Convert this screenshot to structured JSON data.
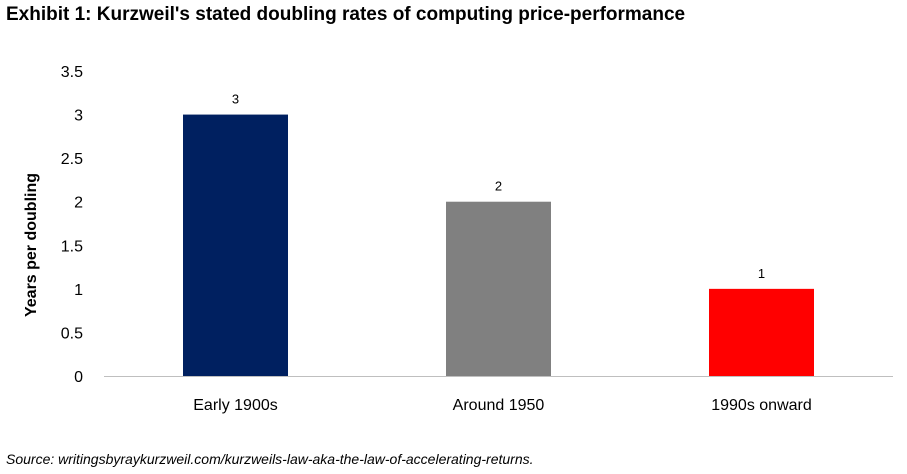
{
  "title": "Exhibit 1: Kurzweil's stated doubling rates of computing price-performance",
  "source": "Source: writingsbyraykurzweil.com/kurzweils-law-aka-the-law-of-accelerating-returns.",
  "chart_data": {
    "type": "bar",
    "categories": [
      "Early 1900s",
      "Around 1950",
      "1990s onward"
    ],
    "values": [
      3,
      2,
      1
    ],
    "data_labels": [
      "3",
      "2",
      "1"
    ],
    "colors": [
      "#002060",
      "#808080",
      "#ff0000"
    ],
    "ylabel": "Years per doubling",
    "xlabel": "",
    "ylim": [
      0,
      3.5
    ],
    "yticks": [
      0,
      0.5,
      1,
      1.5,
      2,
      2.5,
      3,
      3.5
    ],
    "ytick_labels": [
      "0",
      "0.5",
      "1",
      "1.5",
      "2",
      "2.5",
      "3",
      "3.5"
    ],
    "grid": false,
    "legend": "none"
  }
}
